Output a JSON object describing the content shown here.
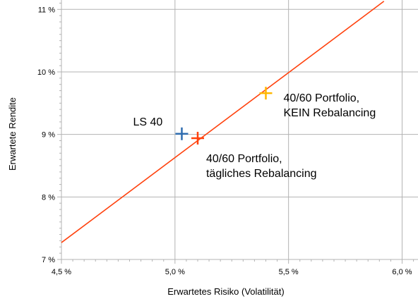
{
  "chart_data": {
    "type": "scatter",
    "title": "",
    "xlabel": "Erwartetes Risiko (Volatilität)",
    "ylabel": "Erwartete Rendite",
    "xlim": [
      4.5,
      6.07
    ],
    "ylim": [
      7.0,
      11.15
    ],
    "x_ticks": [
      4.5,
      5.0,
      5.5,
      6.0
    ],
    "x_tick_labels": [
      "4,5 %",
      "5,0 %",
      "5,5 %",
      "6,0 %"
    ],
    "y_ticks": [
      7,
      8,
      9,
      10,
      11
    ],
    "y_tick_labels": [
      "7 %",
      "8 %",
      "9 %",
      "10 %",
      "11 %"
    ],
    "grid": true,
    "line": {
      "x": [
        4.5,
        5.92
      ],
      "y": [
        7.27,
        11.13
      ],
      "color": "#ff420e"
    },
    "points": [
      {
        "x": 5.03,
        "y": 9.01,
        "color": "#2f6db0",
        "label_lines": [
          "LS 40"
        ]
      },
      {
        "x": 5.1,
        "y": 8.94,
        "color": "#ff420e",
        "label_lines": [
          "40/60 Portfolio,",
          "tägliches Rebalancing"
        ]
      },
      {
        "x": 5.4,
        "y": 9.66,
        "color": "#ffb700",
        "label_lines": [
          "40/60 Portfolio,",
          "KEIN Rebalancing"
        ]
      }
    ]
  }
}
